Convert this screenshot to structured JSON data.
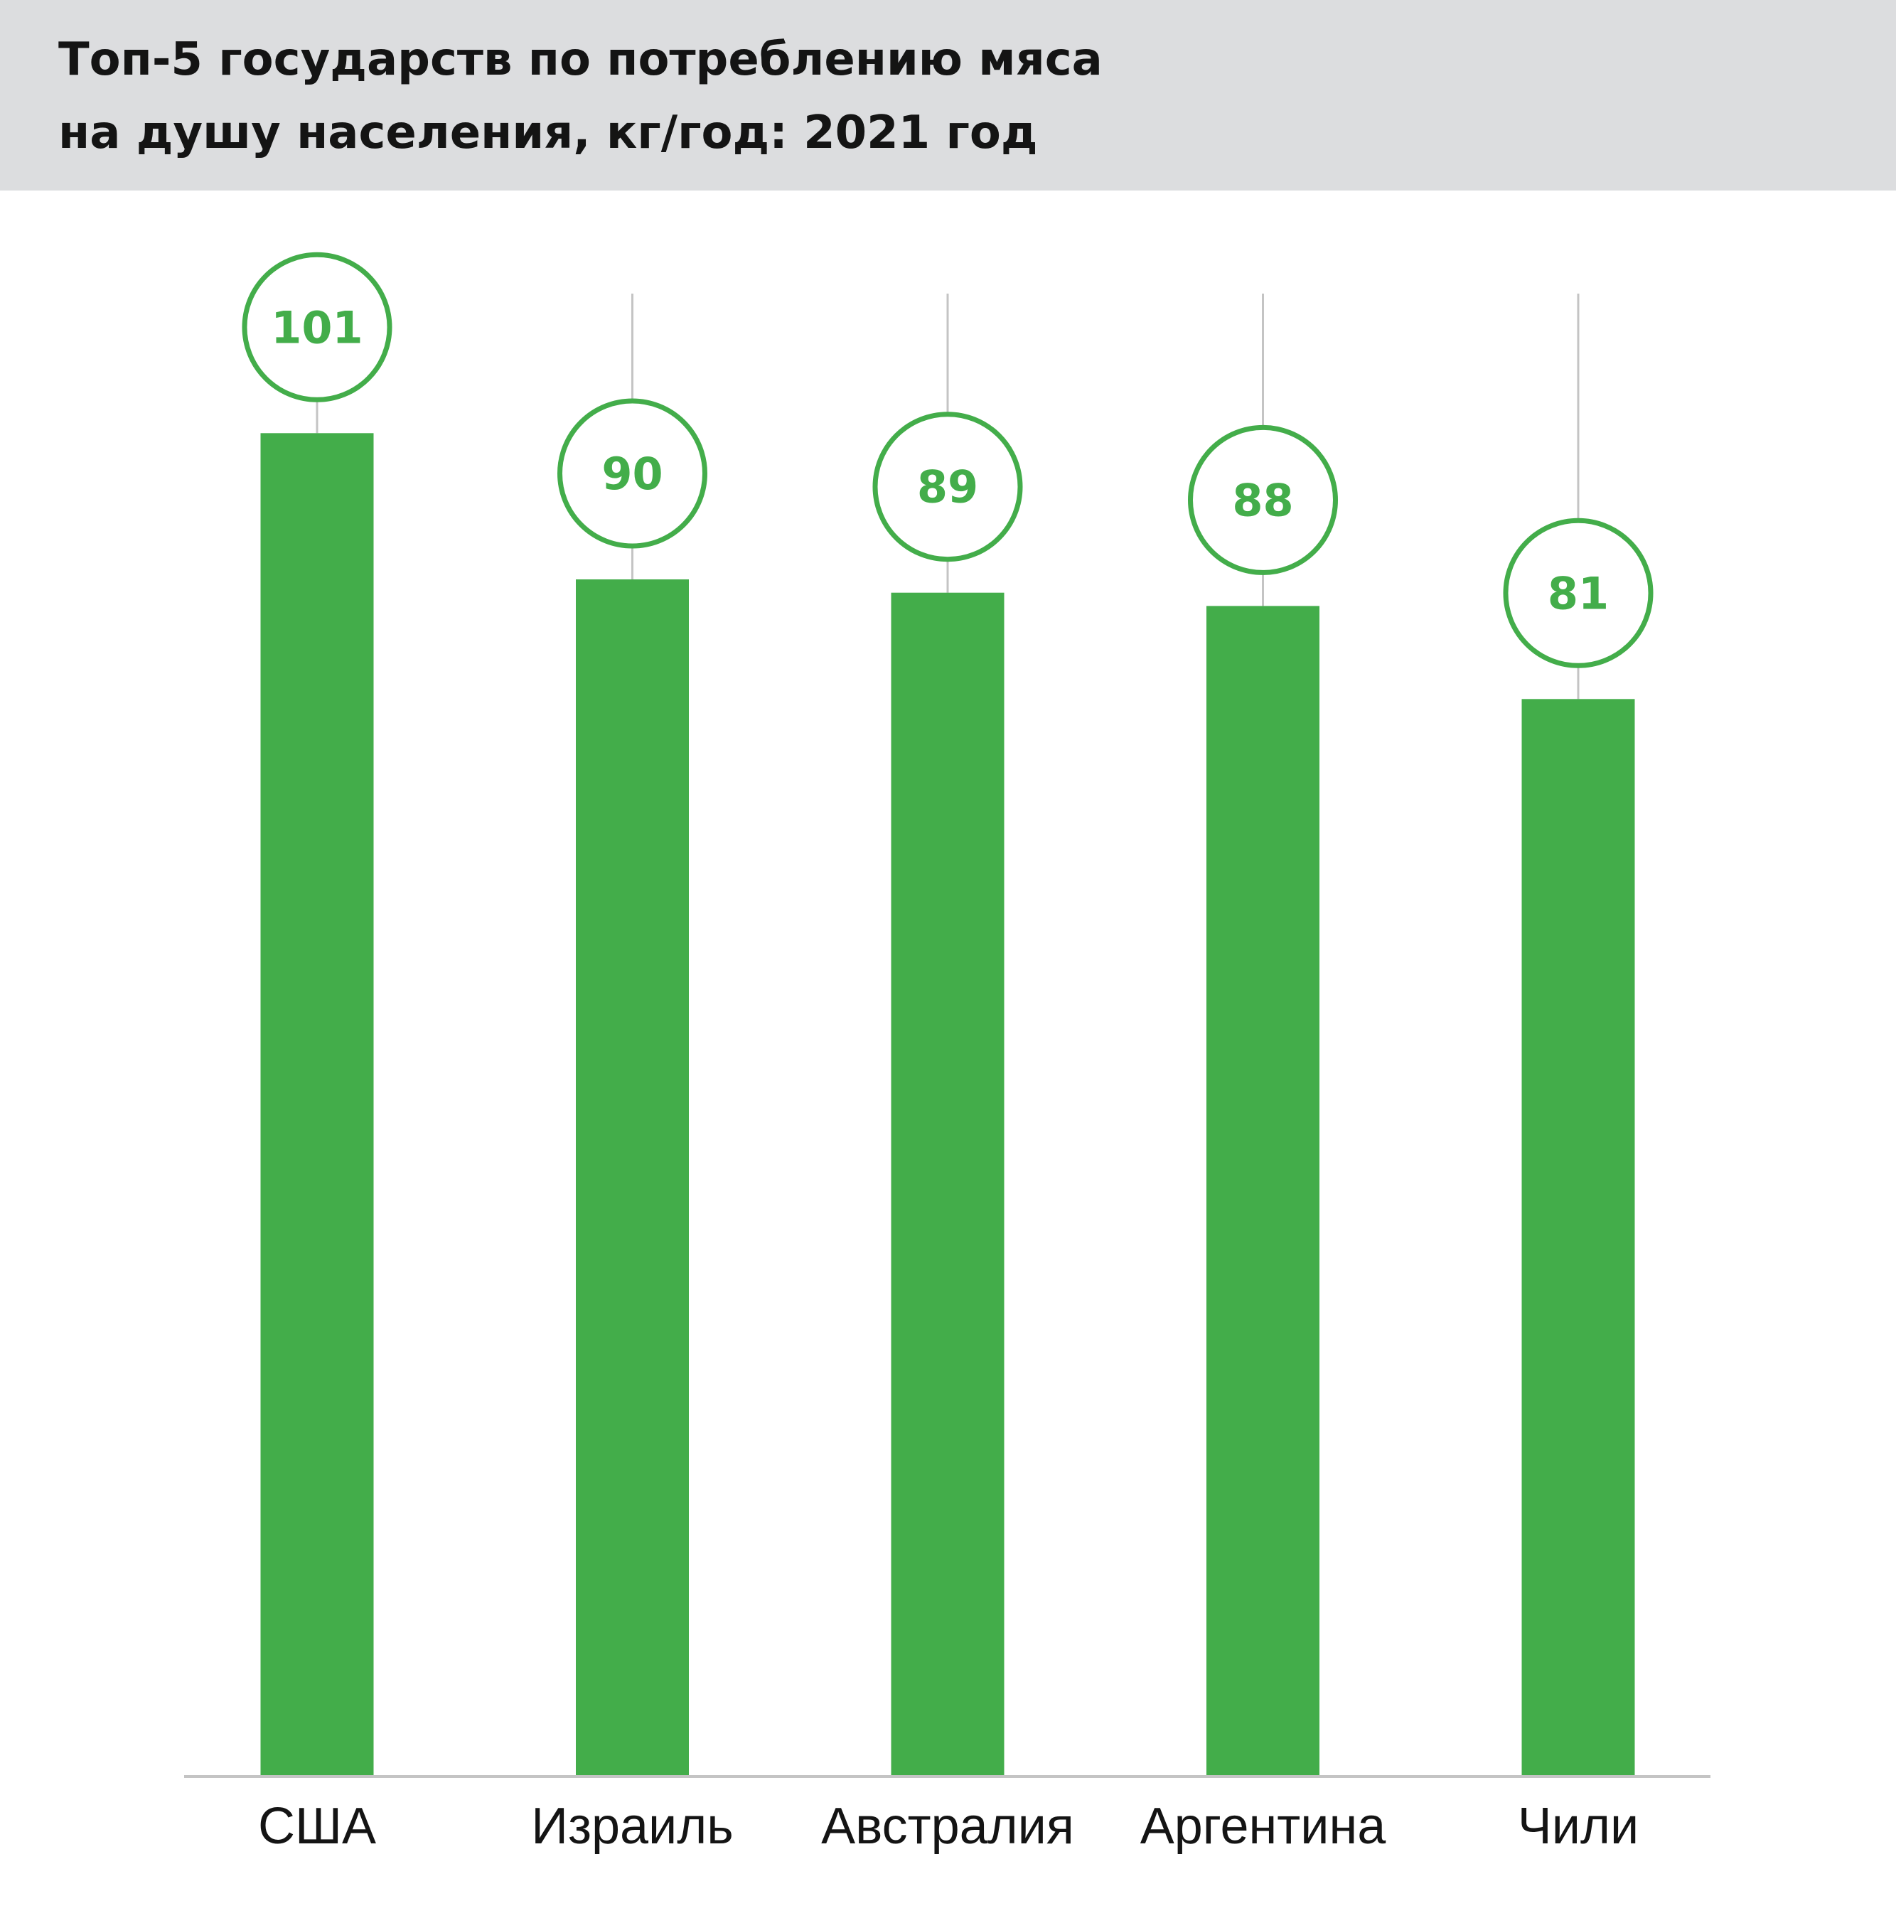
{
  "chart_data": {
    "type": "bar",
    "title_lines": [
      "Топ-5 государств по потреблению мяса",
      "на душу населения, кг/год: 2021 год"
    ],
    "categories": [
      "США",
      "Израиль",
      "Австралия",
      "Аргентина",
      "Чили"
    ],
    "values": [
      101,
      90,
      89,
      88,
      81
    ],
    "value_labels": [
      "101",
      "90",
      "89",
      "88",
      "81"
    ],
    "xlabel": "",
    "ylabel": "",
    "ylim": [
      0,
      101
    ],
    "grid": false,
    "legend": "none"
  },
  "colors": {
    "bar": "#43ad4a",
    "label_ring": "#43ad4a",
    "label_text": "#43ad4a",
    "leader_line": "#c4c4c4",
    "axis": "#c4c4c4",
    "header_bg": "#dcdddf",
    "title_text": "#141414",
    "category_text": "#141414"
  }
}
